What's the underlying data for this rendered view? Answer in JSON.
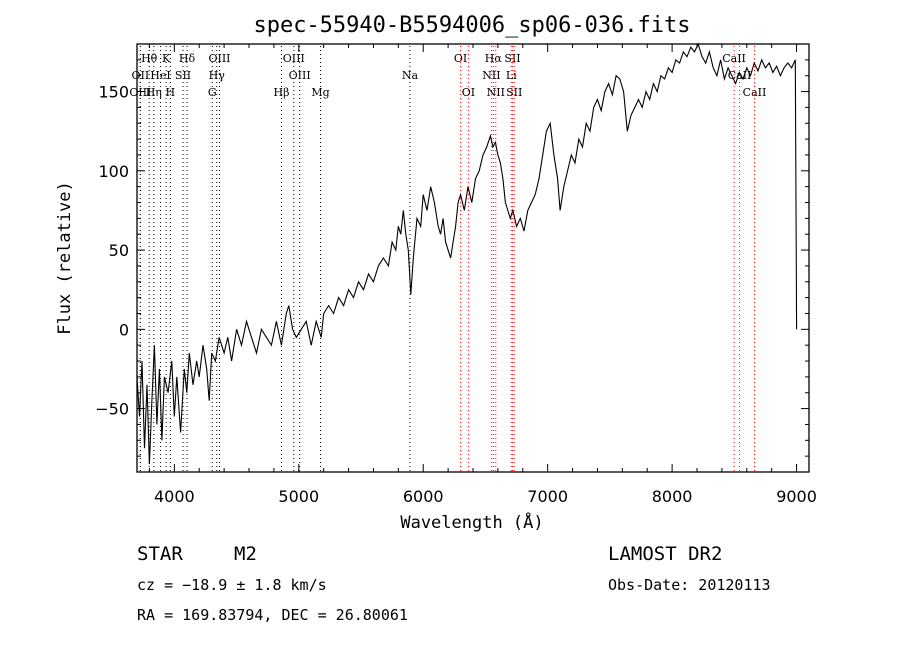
{
  "chart_data": {
    "type": "line",
    "title": "spec-55940-B5594006_sp06-036.fits",
    "xlabel": "Wavelength (Å)",
    "ylabel": "Flux (relative)",
    "xlim": [
      3700,
      9100
    ],
    "ylim": [
      -90,
      180
    ],
    "x_ticks": [
      4000,
      5000,
      6000,
      7000,
      8000,
      9000
    ],
    "y_ticks": [
      -50,
      0,
      50,
      100,
      150
    ],
    "grid": false,
    "series": [
      {
        "color": "#000000",
        "points": [
          [
            3700,
            -30
          ],
          [
            3720,
            -55
          ],
          [
            3740,
            -20
          ],
          [
            3760,
            -75
          ],
          [
            3780,
            -35
          ],
          [
            3800,
            -85
          ],
          [
            3820,
            -45
          ],
          [
            3840,
            -10
          ],
          [
            3860,
            -60
          ],
          [
            3880,
            -25
          ],
          [
            3900,
            -70
          ],
          [
            3920,
            -30
          ],
          [
            3950,
            -40
          ],
          [
            3980,
            -20
          ],
          [
            4000,
            -55
          ],
          [
            4020,
            -30
          ],
          [
            4050,
            -65
          ],
          [
            4080,
            -25
          ],
          [
            4100,
            -40
          ],
          [
            4120,
            -15
          ],
          [
            4150,
            -35
          ],
          [
            4180,
            -20
          ],
          [
            4200,
            -30
          ],
          [
            4230,
            -10
          ],
          [
            4260,
            -25
          ],
          [
            4280,
            -45
          ],
          [
            4300,
            -15
          ],
          [
            4330,
            -20
          ],
          [
            4360,
            -5
          ],
          [
            4400,
            -15
          ],
          [
            4430,
            -5
          ],
          [
            4460,
            -20
          ],
          [
            4500,
            0
          ],
          [
            4540,
            -10
          ],
          [
            4580,
            5
          ],
          [
            4620,
            -5
          ],
          [
            4660,
            -15
          ],
          [
            4700,
            0
          ],
          [
            4740,
            -5
          ],
          [
            4780,
            -10
          ],
          [
            4820,
            5
          ],
          [
            4860,
            -10
          ],
          [
            4900,
            10
          ],
          [
            4920,
            15
          ],
          [
            4950,
            0
          ],
          [
            4980,
            -5
          ],
          [
            5020,
            0
          ],
          [
            5060,
            5
          ],
          [
            5100,
            -10
          ],
          [
            5140,
            5
          ],
          [
            5180,
            -5
          ],
          [
            5200,
            10
          ],
          [
            5240,
            15
          ],
          [
            5280,
            10
          ],
          [
            5320,
            20
          ],
          [
            5360,
            15
          ],
          [
            5400,
            25
          ],
          [
            5440,
            20
          ],
          [
            5480,
            30
          ],
          [
            5520,
            25
          ],
          [
            5560,
            35
          ],
          [
            5600,
            30
          ],
          [
            5640,
            40
          ],
          [
            5680,
            45
          ],
          [
            5720,
            40
          ],
          [
            5750,
            55
          ],
          [
            5780,
            50
          ],
          [
            5800,
            65
          ],
          [
            5820,
            60
          ],
          [
            5840,
            75
          ],
          [
            5860,
            60
          ],
          [
            5880,
            50
          ],
          [
            5900,
            22
          ],
          [
            5920,
            45
          ],
          [
            5950,
            70
          ],
          [
            5980,
            65
          ],
          [
            6000,
            85
          ],
          [
            6030,
            75
          ],
          [
            6060,
            90
          ],
          [
            6090,
            80
          ],
          [
            6120,
            65
          ],
          [
            6140,
            60
          ],
          [
            6160,
            70
          ],
          [
            6180,
            55
          ],
          [
            6200,
            50
          ],
          [
            6220,
            45
          ],
          [
            6240,
            55
          ],
          [
            6260,
            65
          ],
          [
            6280,
            80
          ],
          [
            6300,
            85
          ],
          [
            6330,
            75
          ],
          [
            6360,
            90
          ],
          [
            6390,
            80
          ],
          [
            6420,
            95
          ],
          [
            6450,
            100
          ],
          [
            6480,
            110
          ],
          [
            6510,
            115
          ],
          [
            6540,
            122
          ],
          [
            6560,
            115
          ],
          [
            6580,
            118
          ],
          [
            6600,
            110
          ],
          [
            6620,
            105
          ],
          [
            6640,
            95
          ],
          [
            6660,
            80
          ],
          [
            6680,
            75
          ],
          [
            6700,
            70
          ],
          [
            6720,
            75
          ],
          [
            6750,
            65
          ],
          [
            6780,
            70
          ],
          [
            6810,
            62
          ],
          [
            6840,
            75
          ],
          [
            6870,
            80
          ],
          [
            6900,
            85
          ],
          [
            6930,
            95
          ],
          [
            6960,
            110
          ],
          [
            6990,
            125
          ],
          [
            7020,
            130
          ],
          [
            7050,
            110
          ],
          [
            7080,
            95
          ],
          [
            7100,
            75
          ],
          [
            7130,
            90
          ],
          [
            7160,
            100
          ],
          [
            7190,
            110
          ],
          [
            7220,
            105
          ],
          [
            7250,
            120
          ],
          [
            7280,
            115
          ],
          [
            7310,
            130
          ],
          [
            7340,
            125
          ],
          [
            7370,
            140
          ],
          [
            7400,
            145
          ],
          [
            7430,
            138
          ],
          [
            7460,
            150
          ],
          [
            7490,
            155
          ],
          [
            7520,
            148
          ],
          [
            7550,
            160
          ],
          [
            7580,
            158
          ],
          [
            7610,
            150
          ],
          [
            7640,
            125
          ],
          [
            7670,
            135
          ],
          [
            7700,
            140
          ],
          [
            7730,
            145
          ],
          [
            7760,
            140
          ],
          [
            7790,
            150
          ],
          [
            7820,
            145
          ],
          [
            7850,
            155
          ],
          [
            7880,
            150
          ],
          [
            7910,
            160
          ],
          [
            7940,
            158
          ],
          [
            7970,
            165
          ],
          [
            8000,
            162
          ],
          [
            8030,
            170
          ],
          [
            8060,
            168
          ],
          [
            8090,
            175
          ],
          [
            8120,
            172
          ],
          [
            8150,
            178
          ],
          [
            8180,
            175
          ],
          [
            8210,
            180
          ],
          [
            8240,
            172
          ],
          [
            8270,
            168
          ],
          [
            8300,
            175
          ],
          [
            8330,
            165
          ],
          [
            8360,
            160
          ],
          [
            8390,
            170
          ],
          [
            8420,
            158
          ],
          [
            8450,
            165
          ],
          [
            8480,
            160
          ],
          [
            8510,
            155
          ],
          [
            8540,
            162
          ],
          [
            8570,
            158
          ],
          [
            8600,
            165
          ],
          [
            8630,
            160
          ],
          [
            8660,
            168
          ],
          [
            8690,
            163
          ],
          [
            8720,
            170
          ],
          [
            8750,
            165
          ],
          [
            8780,
            168
          ],
          [
            8810,
            162
          ],
          [
            8840,
            166
          ],
          [
            8870,
            160
          ],
          [
            8900,
            165
          ],
          [
            8930,
            168
          ],
          [
            8960,
            165
          ],
          [
            8990,
            170
          ],
          [
            9000,
            0
          ]
        ]
      }
    ],
    "lines": [
      {
        "label": "Hθ",
        "wl": 3798,
        "color": "#000000",
        "row": 0
      },
      {
        "label": "K",
        "wl": 3934,
        "color": "#000000",
        "row": 0
      },
      {
        "label": "Hδ",
        "wl": 4102,
        "color": "#000000",
        "row": 0
      },
      {
        "label": "OIII",
        "wl": 4363,
        "color": "#000000",
        "row": 0
      },
      {
        "label": "OIII",
        "wl": 4960,
        "color": "#000000",
        "row": 0
      },
      {
        "label": "OI",
        "wl": 6300,
        "color": "#ff0000",
        "row": 0
      },
      {
        "label": "Hα",
        "wl": 6563,
        "color": "#ff0000",
        "row": 0
      },
      {
        "label": "SII",
        "wl": 6717,
        "color": "#ff0000",
        "row": 0
      },
      {
        "label": "CaII",
        "wl": 8498,
        "color": "#ff0000",
        "row": 0
      },
      {
        "label": "OII",
        "wl": 3727,
        "color": "#000000",
        "row": 1
      },
      {
        "label": "HeI",
        "wl": 3889,
        "color": "#000000",
        "row": 1
      },
      {
        "label": "SII",
        "wl": 4070,
        "color": "#000000",
        "row": 1
      },
      {
        "label": "Hγ",
        "wl": 4341,
        "color": "#000000",
        "row": 1
      },
      {
        "label": "OIII",
        "wl": 5007,
        "color": "#000000",
        "row": 1
      },
      {
        "label": "Na",
        "wl": 5893,
        "color": "#000000",
        "row": 1
      },
      {
        "label": "NII",
        "wl": 6548,
        "color": "#ff0000",
        "row": 1
      },
      {
        "label": "Li",
        "wl": 6708,
        "color": "#ff0000",
        "row": 1
      },
      {
        "label": "CaII",
        "wl": 8542,
        "color": "#ff0000",
        "row": 1
      },
      {
        "label": "OIII",
        "wl": 3727,
        "color": "#000000",
        "row": 2
      },
      {
        "label": "Hη",
        "wl": 3835,
        "color": "#000000",
        "row": 2
      },
      {
        "label": "H",
        "wl": 3968,
        "color": "#000000",
        "row": 2
      },
      {
        "label": "G",
        "wl": 4305,
        "color": "#000000",
        "row": 2
      },
      {
        "label": "Hβ",
        "wl": 4861,
        "color": "#000000",
        "row": 2
      },
      {
        "label": "Mg",
        "wl": 5175,
        "color": "#000000",
        "row": 2
      },
      {
        "label": "OI",
        "wl": 6363,
        "color": "#ff0000",
        "row": 2
      },
      {
        "label": "NII",
        "wl": 6583,
        "color": "#ff0000",
        "row": 2
      },
      {
        "label": "SII",
        "wl": 6731,
        "color": "#ff0000",
        "row": 2
      },
      {
        "label": "CaII",
        "wl": 8662,
        "color": "#ff0000",
        "row": 2
      }
    ]
  },
  "info": {
    "object_type": "STAR",
    "subclass": "M2",
    "survey": "LAMOST DR2",
    "cz": "cz = −18.9 ± 1.8 km/s",
    "obs_date": "Obs-Date: 20120113",
    "coords": "RA = 169.83794, DEC =  26.80061"
  }
}
